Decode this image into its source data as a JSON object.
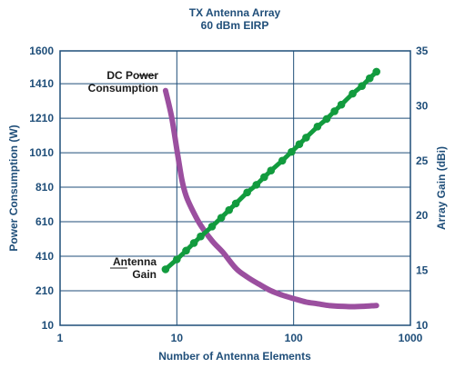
{
  "chart_data": {
    "type": "line",
    "title": "TX Antenna Array",
    "subtitle": "60 dBm EIRP",
    "xlabel": "Number of Antenna Elements",
    "ylabel_left": "Power Consumption (W)",
    "ylabel_right": "Array Gain (dBi)",
    "x_scale": "log",
    "xlim": [
      1,
      1000
    ],
    "ylim_left": [
      10,
      1600
    ],
    "ylim_right": [
      10,
      35
    ],
    "x_ticks": [
      "1",
      "10",
      "100",
      "1000"
    ],
    "y_left_ticks": [
      "1600",
      "1410",
      "1210",
      "1010",
      "810",
      "610",
      "410",
      "210",
      "10"
    ],
    "y_right_ticks": [
      "35",
      "30",
      "25",
      "20",
      "15",
      "10"
    ],
    "grid": true,
    "series": [
      {
        "name": "DC Power Consumption",
        "axis": "left",
        "color": "#9b4f9f",
        "x": [
          8,
          9,
          10,
          11,
          12,
          14,
          16,
          20,
          25,
          32,
          40,
          50,
          64,
          80,
          100,
          128,
          160,
          200,
          256,
          320,
          400,
          512
        ],
        "y": [
          1370,
          1220,
          1030,
          860,
          760,
          660,
          590,
          500,
          430,
          340,
          290,
          250,
          210,
          185,
          165,
          145,
          135,
          125,
          120,
          118,
          120,
          125
        ]
      },
      {
        "name": "Antenna Gain",
        "axis": "right",
        "color": "#129b3e",
        "marker": "circle",
        "x": [
          8,
          10,
          12,
          14,
          16,
          20,
          24,
          28,
          32,
          40,
          48,
          56,
          64,
          80,
          96,
          112,
          128,
          160,
          192,
          224,
          256,
          320,
          384,
          448,
          512
        ],
        "y": [
          15.1,
          16.0,
          16.8,
          17.5,
          18.1,
          19.0,
          19.8,
          20.5,
          21.1,
          22.1,
          22.8,
          23.5,
          24.1,
          25.0,
          25.8,
          26.5,
          27.1,
          28.1,
          28.8,
          29.5,
          30.1,
          31.1,
          31.8,
          32.5,
          33.1
        ]
      }
    ],
    "annotations": [
      {
        "text": "DC Power",
        "series": "DC Power Consumption"
      },
      {
        "text": "Consumption",
        "series": "DC Power Consumption"
      },
      {
        "text": "Antenna",
        "series": "Antenna Gain"
      },
      {
        "text": "Gain",
        "series": "Antenna Gain"
      }
    ]
  }
}
